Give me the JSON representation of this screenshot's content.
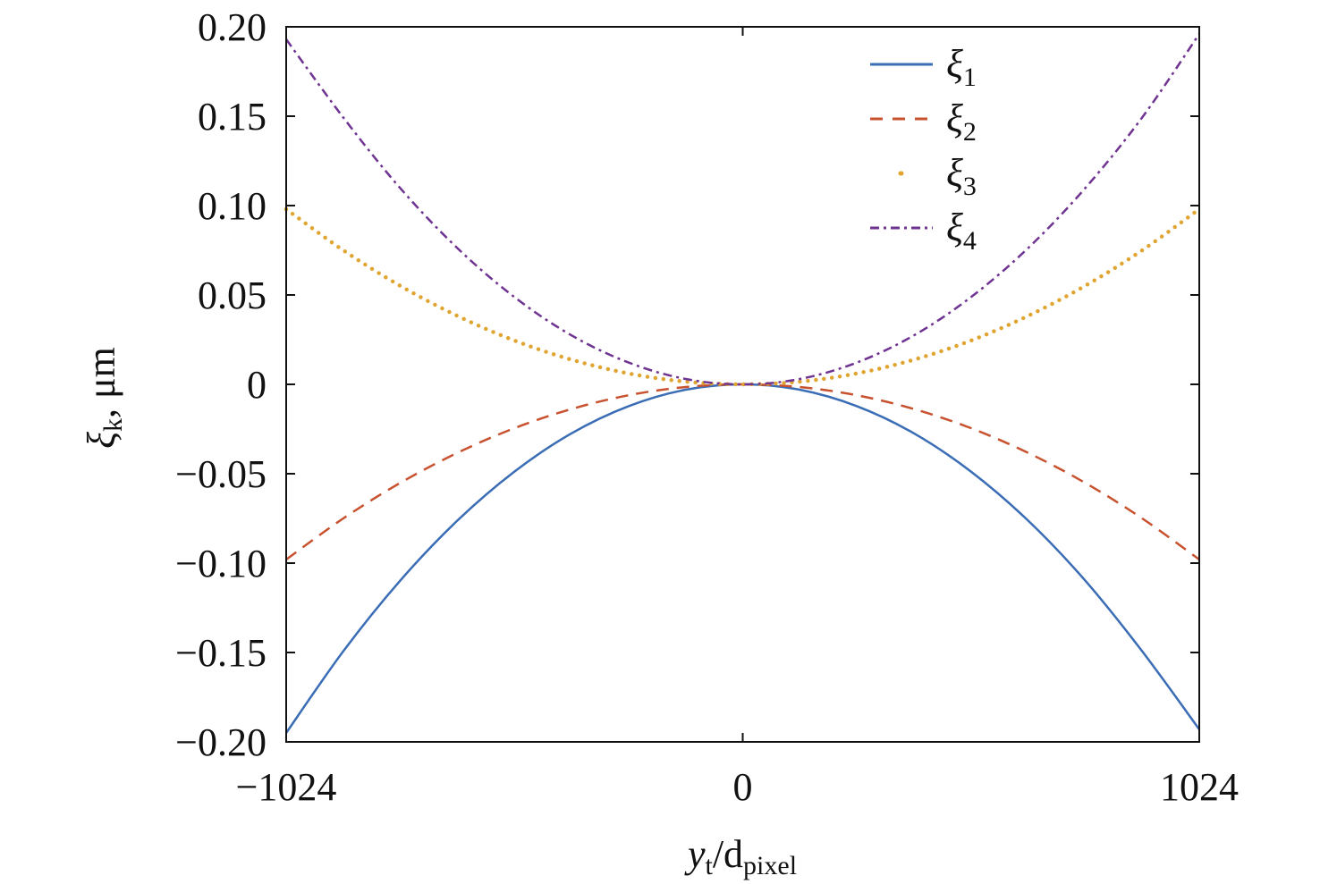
{
  "chart_data": {
    "type": "line",
    "title": "",
    "xlabel": {
      "main": "y",
      "main_sub": "t",
      "sep": "/d",
      "sub": "pixel"
    },
    "ylabel": {
      "main": "ξ",
      "sub": "k",
      "unit": ", μm"
    },
    "xlim": [
      -1024,
      1024
    ],
    "ylim": [
      -0.2,
      0.2
    ],
    "xticks": [
      -1024,
      0,
      1024
    ],
    "xtick_labels": [
      "−1024",
      "0",
      "1024"
    ],
    "yticks": [
      0.2,
      0.15,
      0.1,
      0.05,
      0,
      -0.05,
      -0.1,
      -0.15,
      -0.2
    ],
    "ytick_labels": [
      "0.20",
      "0.15",
      "0.10",
      "0.05",
      "0",
      "−0.05",
      "−0.10",
      "−0.15",
      "−0.20"
    ],
    "grid": false,
    "legend_placement": "top-right",
    "x": [
      -1024,
      -896,
      -768,
      -640,
      -512,
      -384,
      -256,
      -128,
      0,
      128,
      256,
      384,
      512,
      640,
      768,
      896,
      1024
    ],
    "series": [
      {
        "name": "ξ",
        "sub": "1",
        "color": "#3a6db5",
        "style": "solid",
        "values": [
          -0.195,
          -0.1493,
          -0.1097,
          -0.0762,
          -0.0488,
          -0.0274,
          -0.0122,
          -0.003,
          0,
          -0.003,
          -0.0122,
          -0.0274,
          -0.0488,
          -0.0762,
          -0.1097,
          -0.1493,
          -0.193
        ]
      },
      {
        "name": "ξ",
        "sub": "2",
        "color": "#c8522f",
        "style": "dashed",
        "values": [
          -0.098,
          -0.075,
          -0.0551,
          -0.0383,
          -0.0245,
          -0.0138,
          -0.0061,
          -0.0015,
          0,
          -0.0015,
          -0.0061,
          -0.0138,
          -0.0245,
          -0.0383,
          -0.0551,
          -0.075,
          -0.098
        ]
      },
      {
        "name": "ξ",
        "sub": "3",
        "color": "#e0a530",
        "style": "dotted",
        "values": [
          0.098,
          0.075,
          0.0551,
          0.0383,
          0.0245,
          0.0138,
          0.0061,
          0.0015,
          0,
          0.0015,
          0.0061,
          0.0138,
          0.0245,
          0.0383,
          0.0551,
          0.075,
          0.098
        ]
      },
      {
        "name": "ξ",
        "sub": "4",
        "color": "#6f3391",
        "style": "dashdot",
        "values": [
          0.193,
          0.1493,
          0.1097,
          0.0762,
          0.0488,
          0.0274,
          0.0122,
          0.003,
          0,
          0.003,
          0.0122,
          0.0274,
          0.0488,
          0.0762,
          0.1097,
          0.1493,
          0.196
        ]
      }
    ]
  }
}
